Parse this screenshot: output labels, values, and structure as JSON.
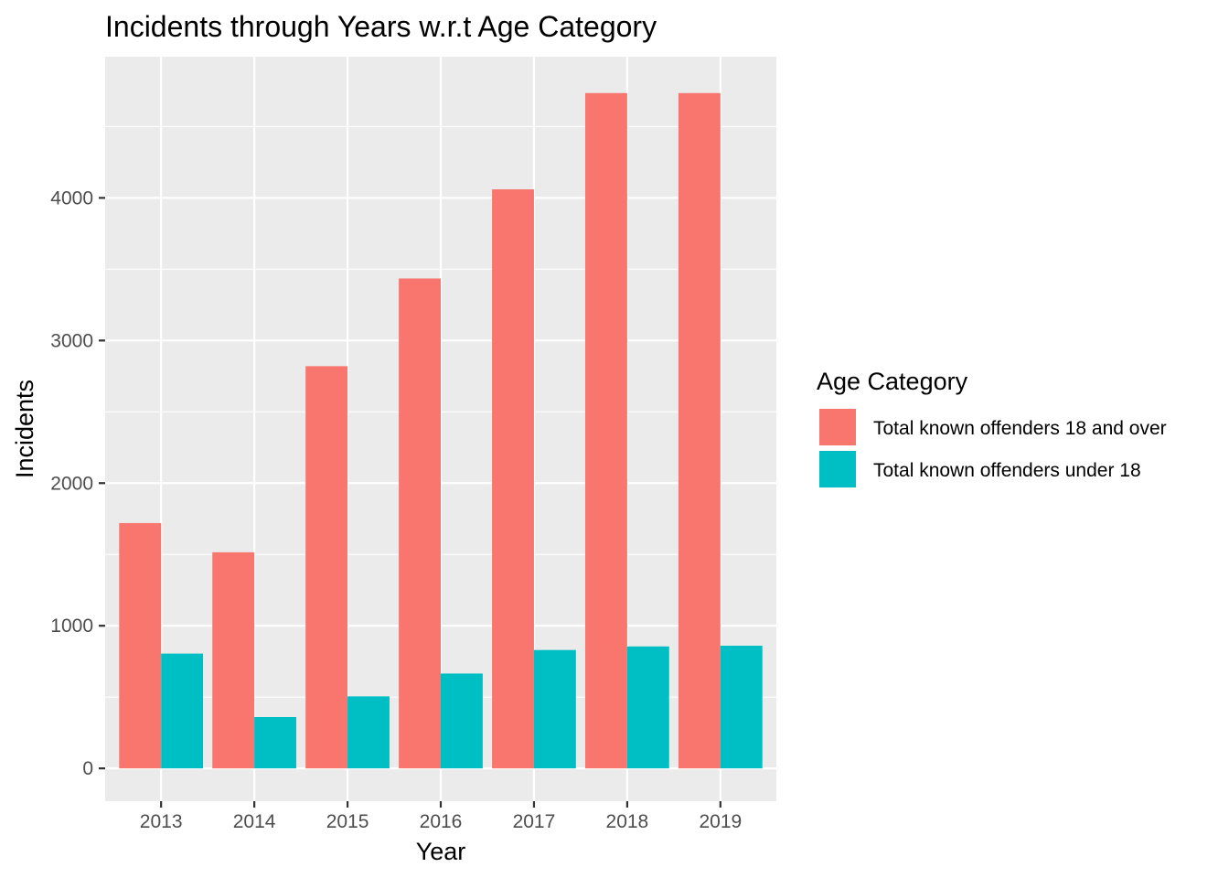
{
  "chart_data": {
    "type": "bar",
    "title": "Incidents through Years w.r.t Age Category",
    "xlabel": "Year",
    "ylabel": "Incidents",
    "categories": [
      "2013",
      "2014",
      "2015",
      "2016",
      "2017",
      "2018",
      "2019"
    ],
    "series": [
      {
        "name": "Total known offenders 18 and over",
        "color": "#F8766D",
        "values": [
          1720,
          1515,
          2820,
          3435,
          4060,
          4735,
          4735
        ]
      },
      {
        "name": "Total known offenders under 18",
        "color": "#00BFC4",
        "values": [
          805,
          360,
          505,
          665,
          830,
          855,
          860
        ]
      }
    ],
    "ylim": [
      -230,
      4990
    ],
    "yticks": [
      0,
      1000,
      2000,
      3000,
      4000
    ],
    "yticks_labels": [
      "0",
      "1000",
      "2000",
      "3000",
      "4000"
    ],
    "grid": true,
    "panel_background": "#EBEBEB",
    "legend": {
      "title": "Age Category",
      "position": "right"
    }
  }
}
